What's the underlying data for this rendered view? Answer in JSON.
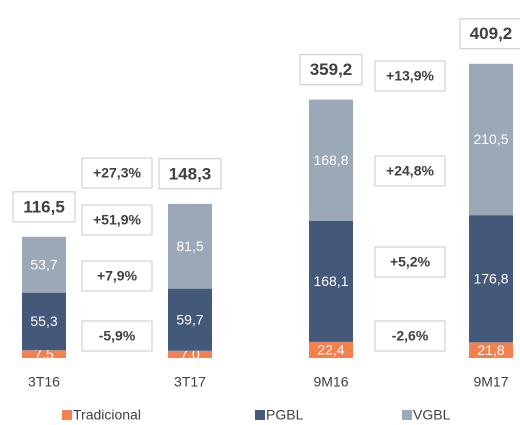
{
  "chart_data": [
    {
      "type": "bar",
      "stacked": true,
      "categories": [
        "3T16",
        "3T17"
      ],
      "series": [
        {
          "name": "Tradicional",
          "color": "#f4804f",
          "values": [
            7.5,
            7.0
          ],
          "value_labels": [
            "7,5",
            "7,0"
          ]
        },
        {
          "name": "PGBL",
          "color": "#44597a",
          "values": [
            55.3,
            59.7
          ],
          "value_labels": [
            "55,3",
            "59,7"
          ]
        },
        {
          "name": "VGBL",
          "color": "#9ba8b8",
          "values": [
            53.7,
            81.5
          ],
          "value_labels": [
            "53,7",
            "81,5"
          ]
        }
      ],
      "totals": [
        116.5,
        148.3
      ],
      "total_labels": [
        "116,5",
        "148,3"
      ],
      "growth_labels": [
        "+27,3%",
        "+51,9%",
        "+7,9%",
        "-5,9%"
      ],
      "ylim": [
        0,
        325
      ]
    },
    {
      "type": "bar",
      "stacked": true,
      "categories": [
        "9M16",
        "9M17"
      ],
      "series": [
        {
          "color": "#f4804f",
          "values": [
            22.4,
            21.8
          ],
          "value_labels": [
            "22,4",
            "21,8"
          ]
        },
        {
          "color": "#44597a",
          "values": [
            168.1,
            176.8
          ],
          "value_labels": [
            "168,1",
            "176,8"
          ]
        },
        {
          "color": "#9ba8b8",
          "values": [
            168.8,
            210.5
          ],
          "value_labels": [
            "168,8",
            "210,5"
          ]
        }
      ],
      "totals": [
        359.2,
        409.2
      ],
      "total_labels": [
        "359,2",
        "409,2"
      ],
      "growth_labels": [
        "+13,9%",
        "+24,8%",
        "+5,2%",
        "-2,6%"
      ],
      "ylim": [
        0,
        470
      ]
    }
  ]
}
